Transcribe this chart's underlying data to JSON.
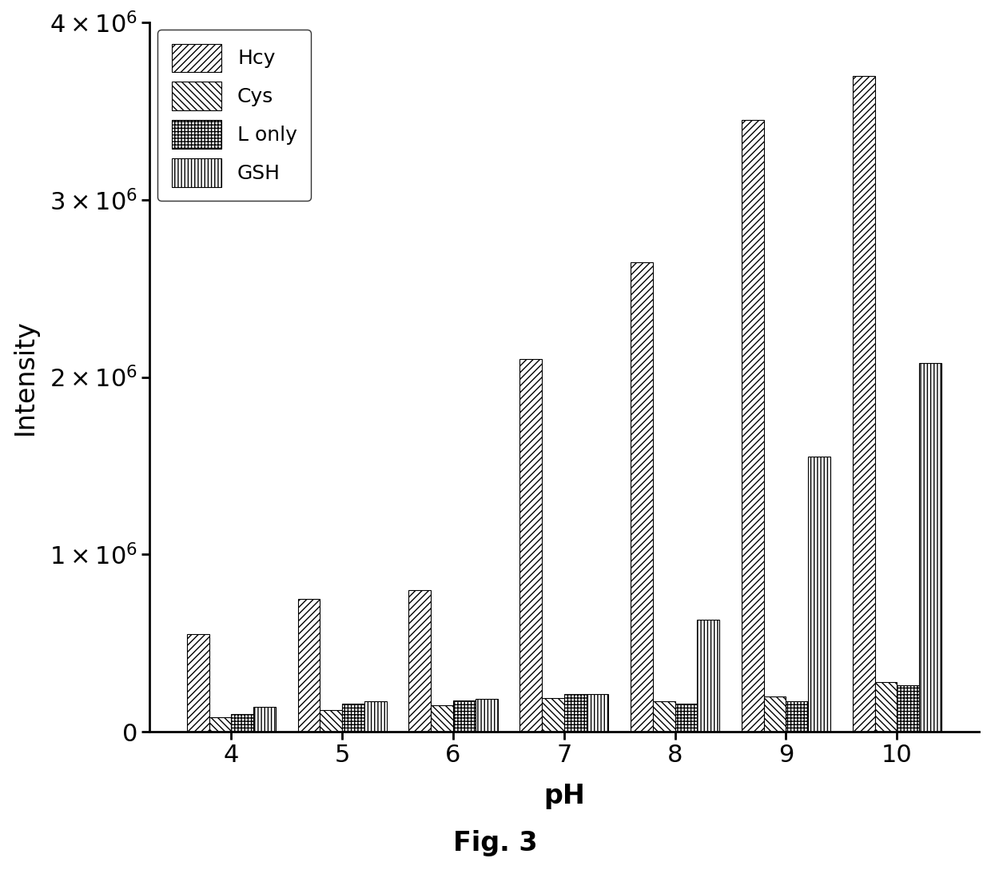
{
  "categories": [
    4,
    5,
    6,
    7,
    8,
    9,
    10
  ],
  "series": {
    "Hcy": [
      550000,
      750000,
      800000,
      2100000,
      2650000,
      3450000,
      3700000
    ],
    "Cys": [
      80000,
      120000,
      150000,
      190000,
      170000,
      200000,
      280000
    ],
    "L_only": [
      100000,
      160000,
      175000,
      210000,
      160000,
      170000,
      260000
    ],
    "GSH": [
      140000,
      170000,
      185000,
      210000,
      630000,
      1550000,
      2080000
    ]
  },
  "hatches": {
    "Hcy": "////",
    "Cys": "\\\\\\\\",
    "L_only": "++++",
    "GSH": "||||"
  },
  "labels": [
    "Hcy",
    "Cys",
    "L only",
    "GSH"
  ],
  "series_keys": [
    "Hcy",
    "Cys",
    "L_only",
    "GSH"
  ],
  "bar_width": 0.2,
  "ylim": [
    0,
    4000000
  ],
  "yticks": [
    0,
    1000000,
    2000000,
    3000000,
    4000000
  ],
  "xlabel": "pH",
  "ylabel": "Intensity",
  "face_color": "white",
  "edge_color": "black",
  "title_below": "Fig. 3",
  "legend_loc": "upper left",
  "font_size": 18,
  "label_font_size": 24,
  "tick_font_size": 22
}
